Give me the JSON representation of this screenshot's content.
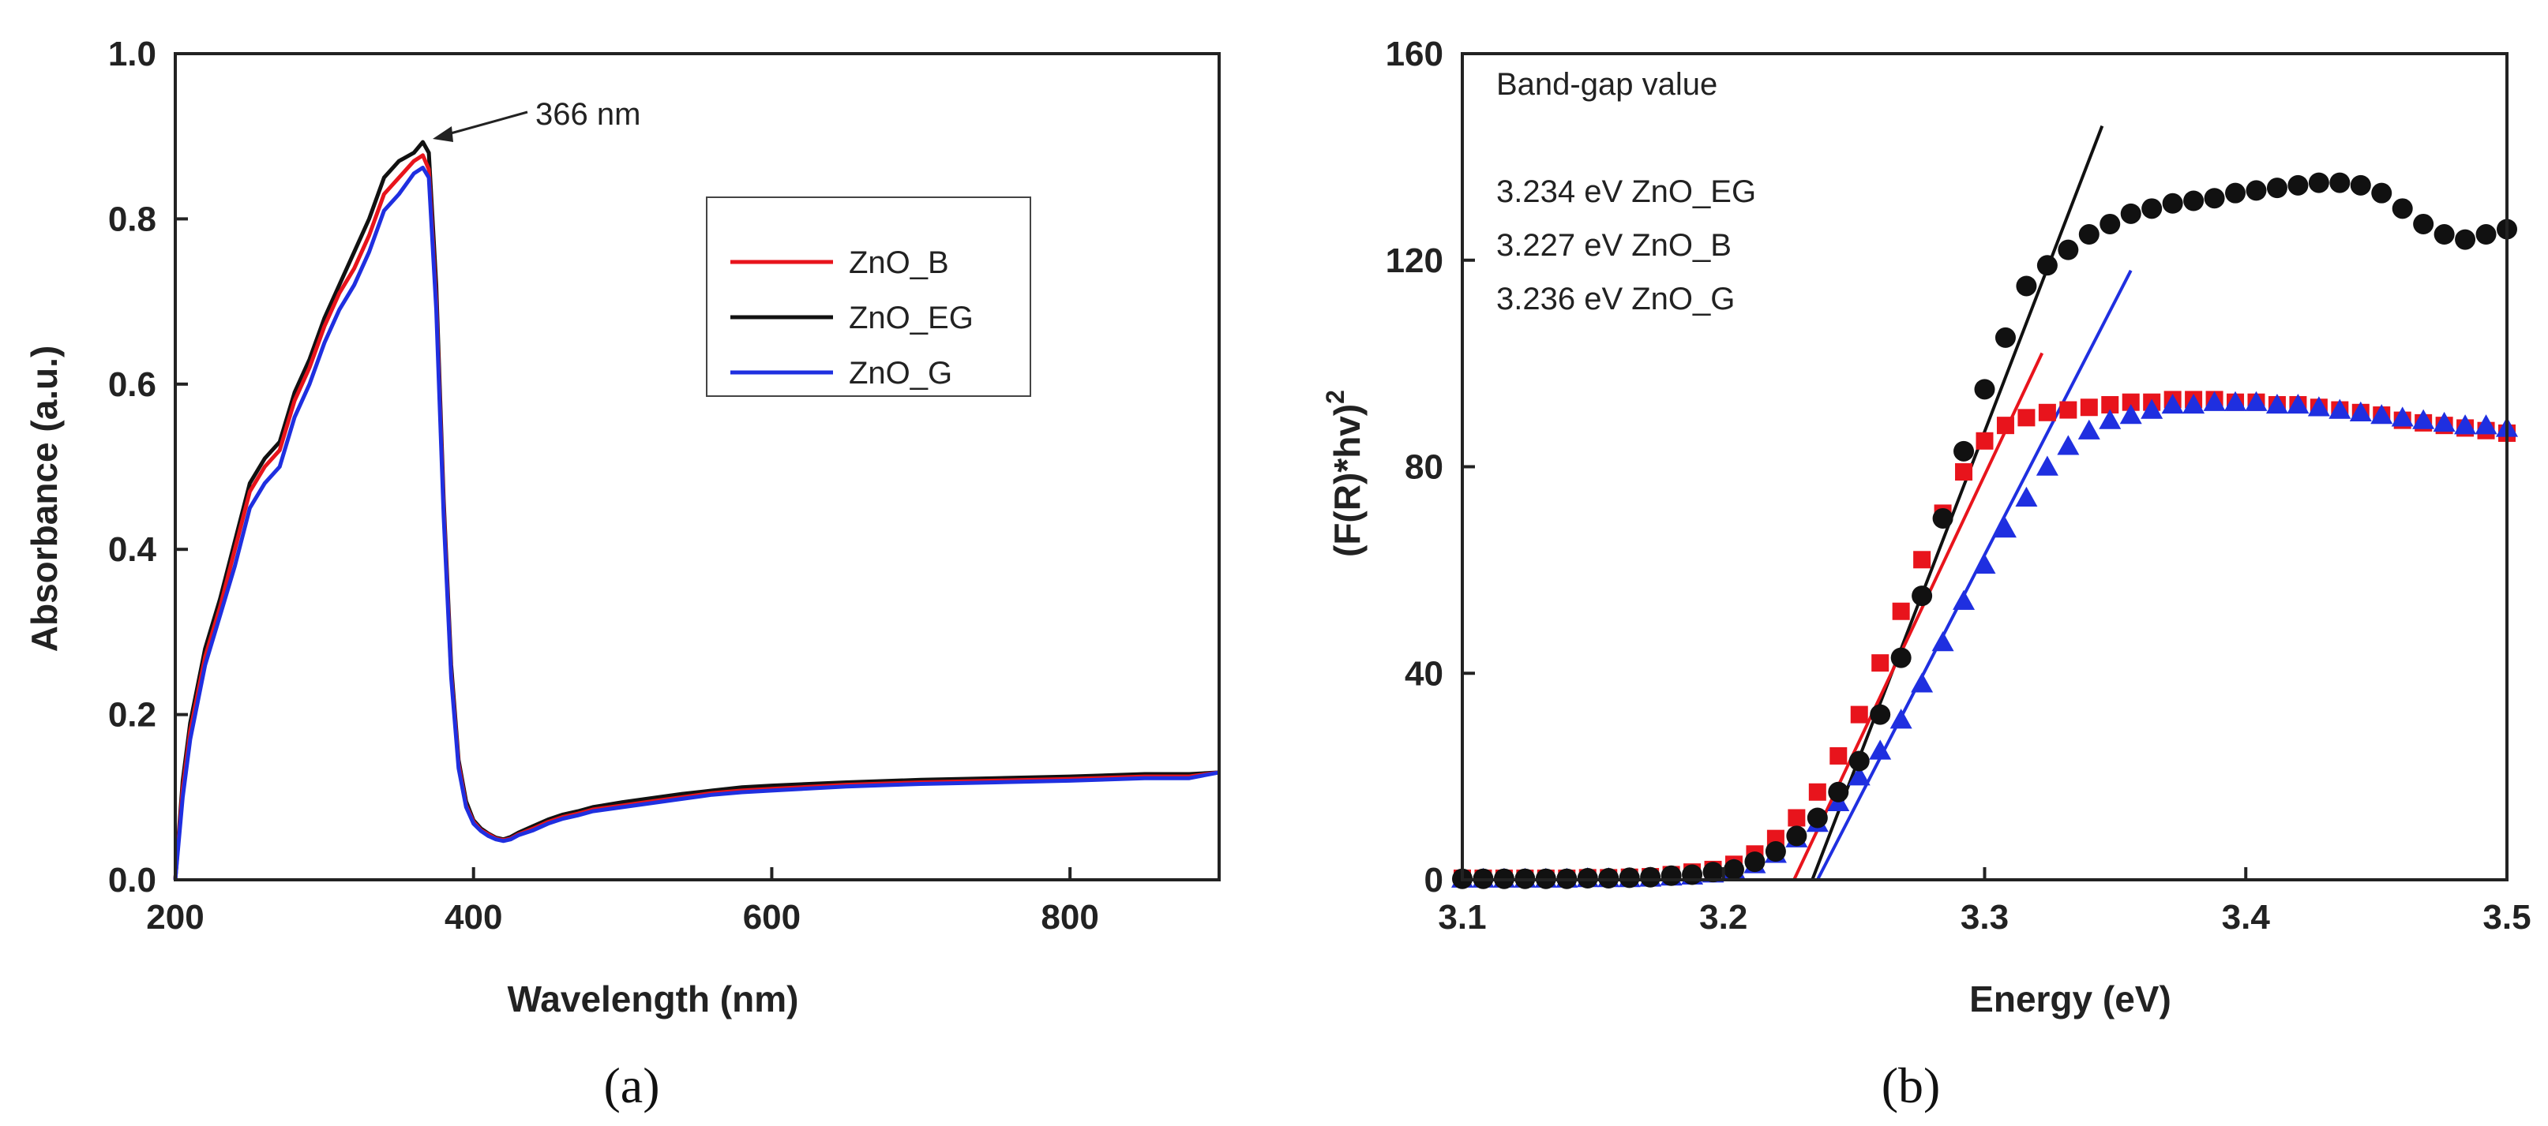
{
  "chart_data": [
    {
      "type": "line",
      "panel_label": "(a)",
      "xlabel": "Wavelength (nm)",
      "ylabel": "Absorbance (a.u.)",
      "xlim": [
        200,
        900
      ],
      "ylim": [
        0,
        1.0
      ],
      "x_ticks": [
        200,
        400,
        600,
        800
      ],
      "y_ticks": [
        0.0,
        0.2,
        0.4,
        0.6,
        0.8,
        1.0
      ],
      "x_tick_labels": [
        "200",
        "400",
        "600",
        "800"
      ],
      "y_tick_labels": [
        "0.0",
        "0.2",
        "0.4",
        "0.6",
        "0.8",
        "1.0"
      ],
      "grid": false,
      "legend_position": "upper-right",
      "annotation": {
        "text": "366 nm",
        "x": 366,
        "y": 0.89
      },
      "x": [
        200,
        205,
        210,
        220,
        230,
        240,
        250,
        260,
        270,
        280,
        290,
        300,
        310,
        320,
        330,
        340,
        350,
        360,
        366,
        370,
        375,
        380,
        385,
        390,
        395,
        400,
        405,
        410,
        415,
        420,
        425,
        430,
        440,
        450,
        460,
        470,
        480,
        500,
        520,
        540,
        560,
        580,
        600,
        650,
        700,
        750,
        800,
        850,
        880,
        900
      ],
      "series": [
        {
          "name": "ZnO_B",
          "color": "#e8141c",
          "values": [
            0.0,
            0.11,
            0.18,
            0.27,
            0.33,
            0.4,
            0.47,
            0.5,
            0.52,
            0.58,
            0.62,
            0.67,
            0.71,
            0.74,
            0.78,
            0.83,
            0.85,
            0.87,
            0.877,
            0.86,
            0.7,
            0.45,
            0.25,
            0.14,
            0.09,
            0.07,
            0.06,
            0.055,
            0.05,
            0.048,
            0.05,
            0.055,
            0.062,
            0.07,
            0.076,
            0.08,
            0.085,
            0.09,
            0.095,
            0.1,
            0.105,
            0.108,
            0.11,
            0.115,
            0.118,
            0.12,
            0.122,
            0.125,
            0.125,
            0.13
          ]
        },
        {
          "name": "ZnO_EG",
          "color": "#111111",
          "values": [
            0.0,
            0.12,
            0.19,
            0.28,
            0.34,
            0.41,
            0.48,
            0.51,
            0.53,
            0.59,
            0.63,
            0.68,
            0.72,
            0.76,
            0.8,
            0.85,
            0.87,
            0.88,
            0.893,
            0.88,
            0.72,
            0.46,
            0.26,
            0.145,
            0.095,
            0.072,
            0.062,
            0.056,
            0.051,
            0.049,
            0.052,
            0.057,
            0.065,
            0.073,
            0.079,
            0.083,
            0.088,
            0.094,
            0.099,
            0.104,
            0.108,
            0.112,
            0.114,
            0.118,
            0.121,
            0.123,
            0.125,
            0.128,
            0.128,
            0.13
          ]
        },
        {
          "name": "ZnO_G",
          "color": "#1f2fe0",
          "values": [
            0.0,
            0.1,
            0.17,
            0.26,
            0.32,
            0.38,
            0.45,
            0.48,
            0.5,
            0.56,
            0.6,
            0.65,
            0.69,
            0.72,
            0.76,
            0.81,
            0.83,
            0.855,
            0.862,
            0.85,
            0.69,
            0.44,
            0.245,
            0.135,
            0.088,
            0.068,
            0.059,
            0.053,
            0.049,
            0.047,
            0.049,
            0.054,
            0.06,
            0.068,
            0.074,
            0.078,
            0.083,
            0.088,
            0.093,
            0.098,
            0.103,
            0.106,
            0.108,
            0.113,
            0.116,
            0.118,
            0.12,
            0.123,
            0.123,
            0.13
          ]
        }
      ]
    },
    {
      "type": "scatter",
      "panel_label": "(b)",
      "xlabel": "Energy (eV)",
      "ylabel_main": "(F(R)*hv)",
      "ylabel_sup": "2",
      "xlim": [
        3.1,
        3.5
      ],
      "ylim": [
        0,
        160
      ],
      "x_ticks": [
        3.1,
        3.2,
        3.3,
        3.4,
        3.5
      ],
      "y_ticks": [
        0,
        40,
        80,
        120,
        160
      ],
      "x_tick_labels": [
        "3.1",
        "3.2",
        "3.3",
        "3.4",
        "3.5"
      ],
      "y_tick_labels": [
        "0",
        "40",
        "80",
        "120",
        "160"
      ],
      "grid": false,
      "annotation_title": "Band-gap value",
      "legend_labels": [
        {
          "text": "3.234 eV ZnO_EG",
          "color": "#111111"
        },
        {
          "text": "3.227 eV ZnO_B",
          "color": "#e8141c"
        },
        {
          "text": "3.236 eV ZnO_G",
          "color": "#1f2fe0"
        }
      ],
      "x": [
        3.1,
        3.108,
        3.116,
        3.124,
        3.132,
        3.14,
        3.148,
        3.156,
        3.164,
        3.172,
        3.18,
        3.188,
        3.196,
        3.204,
        3.212,
        3.22,
        3.228,
        3.236,
        3.244,
        3.252,
        3.26,
        3.268,
        3.276,
        3.284,
        3.292,
        3.3,
        3.308,
        3.316,
        3.324,
        3.332,
        3.34,
        3.348,
        3.356,
        3.364,
        3.372,
        3.38,
        3.388,
        3.396,
        3.404,
        3.412,
        3.42,
        3.428,
        3.436,
        3.444,
        3.452,
        3.46,
        3.468,
        3.476,
        3.484,
        3.492,
        3.5
      ],
      "series": [
        {
          "name": "ZnO_EG",
          "marker": "circle",
          "color": "#111111",
          "values": [
            0.2,
            0.2,
            0.2,
            0.2,
            0.2,
            0.2,
            0.3,
            0.3,
            0.4,
            0.5,
            0.8,
            1.0,
            1.5,
            2.0,
            3.5,
            5.5,
            8.5,
            12,
            17,
            23,
            32,
            43,
            55,
            70,
            83,
            95,
            105,
            115,
            119,
            122,
            125,
            127,
            129,
            130,
            131,
            131.5,
            132,
            133,
            133.5,
            134,
            134.5,
            135,
            135,
            134.5,
            133,
            130,
            127,
            125,
            124,
            125,
            126
          ],
          "fit": {
            "x0": 3.234,
            "x1": 3.345,
            "y1": 146
          }
        },
        {
          "name": "ZnO_B",
          "marker": "square",
          "color": "#e8141c",
          "values": [
            0.3,
            0.3,
            0.3,
            0.3,
            0.3,
            0.3,
            0.4,
            0.4,
            0.5,
            0.6,
            1.0,
            1.5,
            2.0,
            3.0,
            5.0,
            8.0,
            12,
            17,
            24,
            32,
            42,
            52,
            62,
            71,
            79,
            85,
            88,
            89.5,
            90.5,
            91,
            91.5,
            92,
            92.5,
            92.5,
            93,
            93,
            93,
            92.5,
            92.5,
            92,
            92,
            91.5,
            91,
            90.5,
            90,
            89,
            88.5,
            88,
            87.5,
            87,
            86.5
          ],
          "fit": {
            "x0": 3.227,
            "x1": 3.322,
            "y1": 102
          }
        },
        {
          "name": "ZnO_G",
          "marker": "triangle",
          "color": "#1f2fe0",
          "values": [
            0.2,
            0.2,
            0.2,
            0.2,
            0.2,
            0.2,
            0.3,
            0.3,
            0.3,
            0.4,
            0.6,
            0.8,
            1.2,
            2.0,
            3.0,
            5.0,
            8.0,
            11,
            15,
            20,
            25,
            31,
            38,
            46,
            54,
            61,
            68,
            74,
            80,
            84,
            87,
            89,
            90,
            91,
            92,
            92,
            92.5,
            92.5,
            92.5,
            92,
            92,
            91.5,
            91,
            90.5,
            90,
            89.5,
            89,
            88.5,
            88,
            88,
            87.5
          ],
          "fit": {
            "x0": 3.236,
            "x1": 3.356,
            "y1": 118
          }
        }
      ]
    }
  ]
}
